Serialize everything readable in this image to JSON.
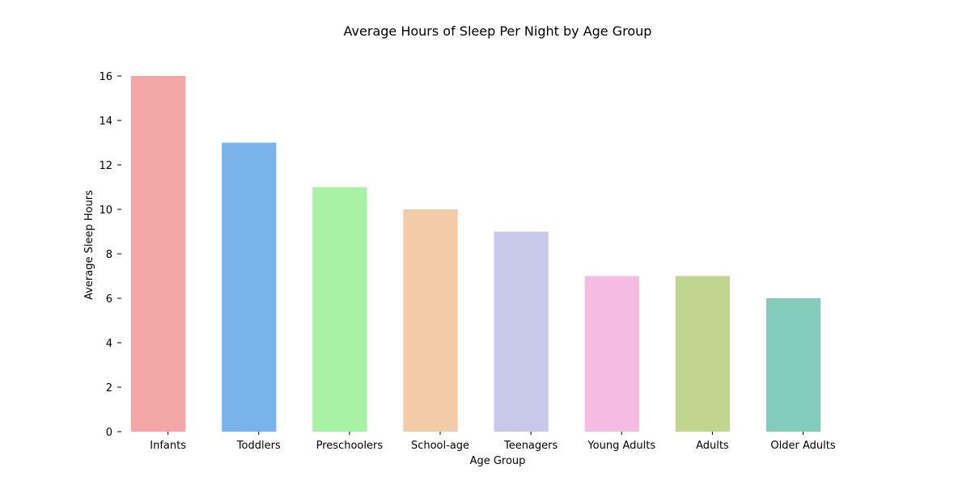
{
  "chart_data": {
    "type": "bar",
    "title": "Average Hours of Sleep Per Night by Age Group",
    "xlabel": "Age Group",
    "ylabel": "Average Sleep Hours",
    "categories": [
      "Infants",
      "Toddlers",
      "Preschoolers",
      "School-age",
      "Teenagers",
      "Young Adults",
      "Adults",
      "Older Adults"
    ],
    "values": [
      16,
      13,
      11,
      10,
      9,
      7,
      7,
      6
    ],
    "colors": [
      "#f2a6a6",
      "#78b3ea",
      "#a8f2a6",
      "#f2cca6",
      "#c8c8ea",
      "#f5bbe3",
      "#c0d68c",
      "#83ccbc"
    ],
    "ylim": [
      0,
      16
    ],
    "yticks": [
      0,
      2,
      4,
      6,
      8,
      10,
      12,
      14,
      16
    ],
    "grid": false,
    "legend": "none"
  }
}
